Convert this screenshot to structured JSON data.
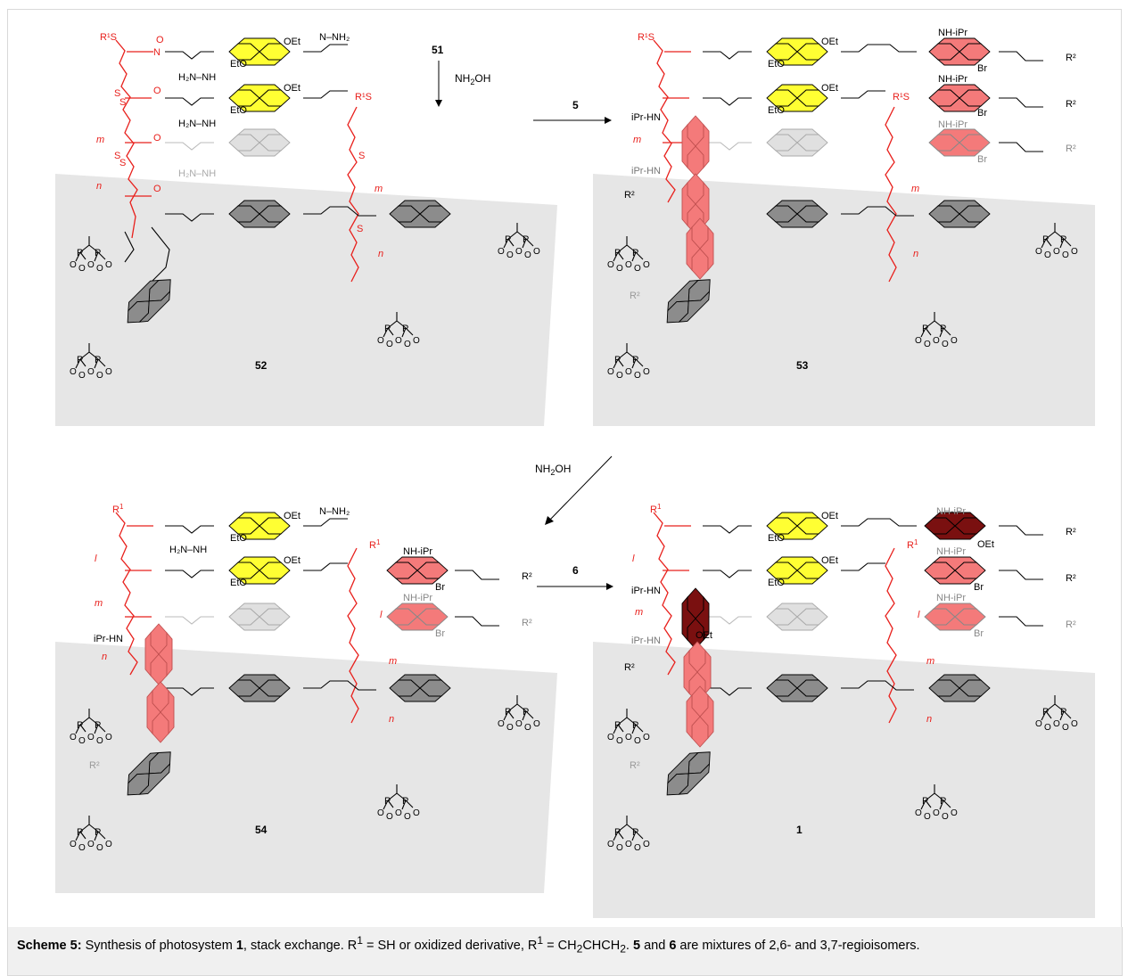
{
  "scheme": {
    "panels": [
      {
        "id": "52",
        "label": "52"
      },
      {
        "id": "53",
        "label": "53"
      },
      {
        "id": "54",
        "label": "54"
      },
      {
        "id": "1",
        "label": "1"
      }
    ],
    "arrows": [
      {
        "reagent_top": "51",
        "reagent_bottom": "NH2OH"
      },
      {
        "reagent": "5"
      },
      {
        "reagent": "NH2OH"
      },
      {
        "reagent": "6"
      }
    ],
    "fragment_labels": {
      "r1s": "R¹S",
      "oet": "OEt",
      "eto": "EtO",
      "nhnh2": "N–NH₂",
      "h2nnh": "H₂N–NH",
      "nh_ipr": "NH-iPr",
      "ipr_hn": "iPr-HN",
      "br": "Br",
      "r2": "R²",
      "m": "m",
      "n": "n",
      "l": "l",
      "s": "S",
      "p": "P",
      "o": "O"
    }
  },
  "caption": {
    "bold_lead": "Scheme 5:",
    "text_1": " Synthesis of photosystem ",
    "bold_1": "1",
    "text_2": ", stack exchange. R",
    "sup_1": "1",
    "text_3": " = SH or oxidized derivative, R",
    "sup_2": "1",
    "text_4": " = CH",
    "sub_1": "2",
    "text_5": "CHCH",
    "sub_2": "2",
    "text_6": ". ",
    "bold_2": "5",
    "text_7": " and ",
    "bold_3": "6",
    "text_8": " are mixtures of 2,6- and 3,7-regioisomers."
  },
  "colors": {
    "surface": "#e6e6e6",
    "yellow_ndi": "#ffff33",
    "red_ndi": "#f47a7a",
    "darkred_ndi": "#7a1010",
    "gray_ndi": "#8c8c8c",
    "light_ndi": "#e0e0e0",
    "red_linker": "#e8201c"
  }
}
